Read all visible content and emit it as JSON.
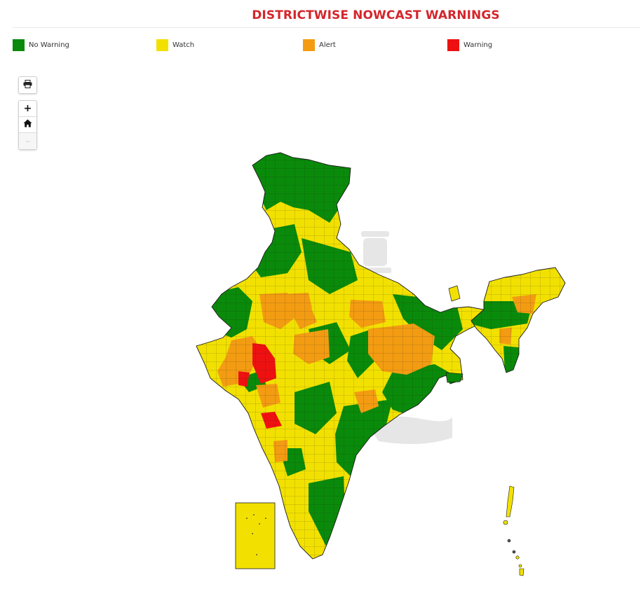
{
  "header": {
    "title": "DISTRICTWISE NOWCAST WARNINGS"
  },
  "legend": [
    {
      "label": "No Warning",
      "color": "#0a8a0a"
    },
    {
      "label": "Watch",
      "color": "#f2e100"
    },
    {
      "label": "Alert",
      "color": "#f39c12"
    },
    {
      "label": "Warning",
      "color": "#ee1111"
    }
  ],
  "controls": {
    "print_icon": "printer-icon",
    "zoom_in": "+",
    "home_icon": "home-icon",
    "zoom_out": "–"
  },
  "colors": {
    "no_warning": "#0a8a0a",
    "watch": "#f2e100",
    "alert": "#f39c12",
    "warning": "#ee1111",
    "title": "#d3262c"
  }
}
